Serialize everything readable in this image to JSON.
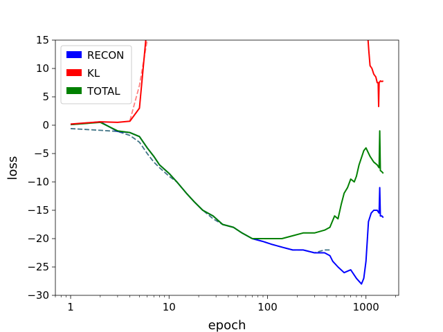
{
  "chart_data": {
    "type": "line",
    "xlabel": "epoch",
    "ylabel": "loss",
    "xscale": "log",
    "xlim": [
      0.7,
      2150
    ],
    "ylim": [
      -30,
      15
    ],
    "x_ticks": [
      1,
      10,
      100,
      1000
    ],
    "x_tick_labels": [
      "1",
      "10",
      "100",
      "1000"
    ],
    "y_ticks": [
      15,
      10,
      5,
      0,
      -5,
      -10,
      -15,
      -20,
      -25,
      -30
    ],
    "y_tick_labels": [
      "15",
      "10",
      "5",
      "0",
      "−5",
      "−10",
      "−15",
      "−20",
      "−25",
      "−30"
    ],
    "grid": false,
    "legend_position": "top-left",
    "legend": [
      {
        "label": "RECON",
        "color": "#0000ff"
      },
      {
        "label": "KL",
        "color": "#ff0000"
      },
      {
        "label": "TOTAL",
        "color": "#008000"
      }
    ],
    "series": [
      {
        "name": "RECON",
        "color": "#0000ff",
        "style": "solid",
        "points": [
          [
            1,
            0.1
          ],
          [
            2,
            0.6
          ],
          [
            3,
            -1.1
          ],
          [
            4,
            -1.3
          ],
          [
            5,
            -2
          ],
          [
            6,
            -4
          ],
          [
            7,
            -5.5
          ],
          [
            8,
            -7
          ],
          [
            10,
            -8.5
          ],
          [
            12,
            -10
          ],
          [
            15,
            -12
          ],
          [
            18,
            -13.5
          ],
          [
            22,
            -15
          ],
          [
            28,
            -16
          ],
          [
            35,
            -17.5
          ],
          [
            45,
            -18
          ],
          [
            55,
            -19
          ],
          [
            70,
            -20
          ],
          [
            90,
            -20.5
          ],
          [
            110,
            -21
          ],
          [
            140,
            -21.5
          ],
          [
            180,
            -22
          ],
          [
            230,
            -22
          ],
          [
            300,
            -22.5
          ],
          [
            380,
            -22.5
          ],
          [
            430,
            -23
          ],
          [
            460,
            -24
          ],
          [
            520,
            -25
          ],
          [
            600,
            -26
          ],
          [
            700,
            -25.5
          ],
          [
            800,
            -27
          ],
          [
            900,
            -28
          ],
          [
            950,
            -27
          ],
          [
            1000,
            -24
          ],
          [
            1060,
            -17
          ],
          [
            1130,
            -15.5
          ],
          [
            1200,
            -15
          ],
          [
            1300,
            -15
          ],
          [
            1360,
            -15.5
          ],
          [
            1380,
            -11
          ],
          [
            1400,
            -16
          ],
          [
            1450,
            -16
          ],
          [
            1500,
            -16.3
          ]
        ]
      },
      {
        "name": "KL",
        "color": "#ff0000",
        "style": "solid",
        "points": [
          [
            1,
            0.2
          ],
          [
            2,
            0.6
          ],
          [
            3,
            0.5
          ],
          [
            4,
            0.7
          ],
          [
            5,
            3
          ],
          [
            5.8,
            15
          ]
        ]
      },
      {
        "name": "KL",
        "color": "#ff0000",
        "style": "solid",
        "points": [
          [
            1050,
            15
          ],
          [
            1070,
            13
          ],
          [
            1100,
            10.5
          ],
          [
            1150,
            10
          ],
          [
            1200,
            9
          ],
          [
            1260,
            8.5
          ],
          [
            1300,
            7.5
          ],
          [
            1330,
            7.5
          ],
          [
            1345,
            3.3
          ],
          [
            1360,
            7.5
          ],
          [
            1400,
            7.8
          ],
          [
            1450,
            7.7
          ],
          [
            1500,
            7.8
          ]
        ]
      },
      {
        "name": "TOTAL",
        "color": "#008000",
        "style": "solid",
        "points": [
          [
            1,
            0.1
          ],
          [
            2,
            0.5
          ],
          [
            3,
            -1
          ],
          [
            4,
            -1.3
          ],
          [
            5,
            -2
          ],
          [
            6,
            -4
          ],
          [
            7,
            -5.5
          ],
          [
            8,
            -7
          ],
          [
            10,
            -8.5
          ],
          [
            12,
            -10
          ],
          [
            15,
            -12
          ],
          [
            18,
            -13.5
          ],
          [
            22,
            -15
          ],
          [
            28,
            -16
          ],
          [
            35,
            -17.5
          ],
          [
            45,
            -18
          ],
          [
            55,
            -19
          ],
          [
            70,
            -20
          ],
          [
            90,
            -20
          ],
          [
            110,
            -20
          ],
          [
            140,
            -20
          ],
          [
            180,
            -19.5
          ],
          [
            230,
            -19
          ],
          [
            300,
            -19
          ],
          [
            380,
            -18.5
          ],
          [
            430,
            -18
          ],
          [
            480,
            -16
          ],
          [
            520,
            -16.5
          ],
          [
            560,
            -14
          ],
          [
            600,
            -12
          ],
          [
            650,
            -11
          ],
          [
            700,
            -9.5
          ],
          [
            760,
            -10
          ],
          [
            800,
            -9
          ],
          [
            850,
            -7
          ],
          [
            950,
            -4.5
          ],
          [
            1000,
            -4
          ],
          [
            1100,
            -5.5
          ],
          [
            1200,
            -6.5
          ],
          [
            1300,
            -7
          ],
          [
            1360,
            -7.5
          ],
          [
            1380,
            -1
          ],
          [
            1400,
            -8
          ],
          [
            1450,
            -8.2
          ],
          [
            1500,
            -8.5
          ]
        ]
      },
      {
        "name": "KL",
        "color": "#ff0000",
        "style": "dashed",
        "points": [
          [
            4,
            0.8
          ],
          [
            5,
            7
          ],
          [
            6,
            15
          ]
        ]
      },
      {
        "name": "TOTAL",
        "color": "#2a6478",
        "style": "dashed",
        "points": [
          [
            1,
            -0.6
          ],
          [
            2,
            -0.9
          ],
          [
            3,
            -1.1
          ],
          [
            4,
            -1.8
          ],
          [
            5,
            -3
          ],
          [
            6,
            -5
          ],
          [
            7,
            -6.5
          ],
          [
            8,
            -7.5
          ],
          [
            10,
            -9
          ],
          [
            12,
            -10
          ],
          [
            15,
            -12
          ],
          [
            18,
            -13.5
          ],
          [
            22,
            -15
          ],
          [
            28,
            -16.5
          ],
          [
            35,
            -17.5
          ],
          [
            45,
            -18
          ],
          [
            55,
            -19
          ],
          [
            70,
            -20
          ],
          [
            90,
            -20.5
          ],
          [
            110,
            -21
          ],
          [
            140,
            -21.5
          ],
          [
            180,
            -22
          ],
          [
            230,
            -22
          ],
          [
            300,
            -22.5
          ],
          [
            380,
            -22
          ],
          [
            430,
            -22
          ]
        ]
      }
    ]
  }
}
